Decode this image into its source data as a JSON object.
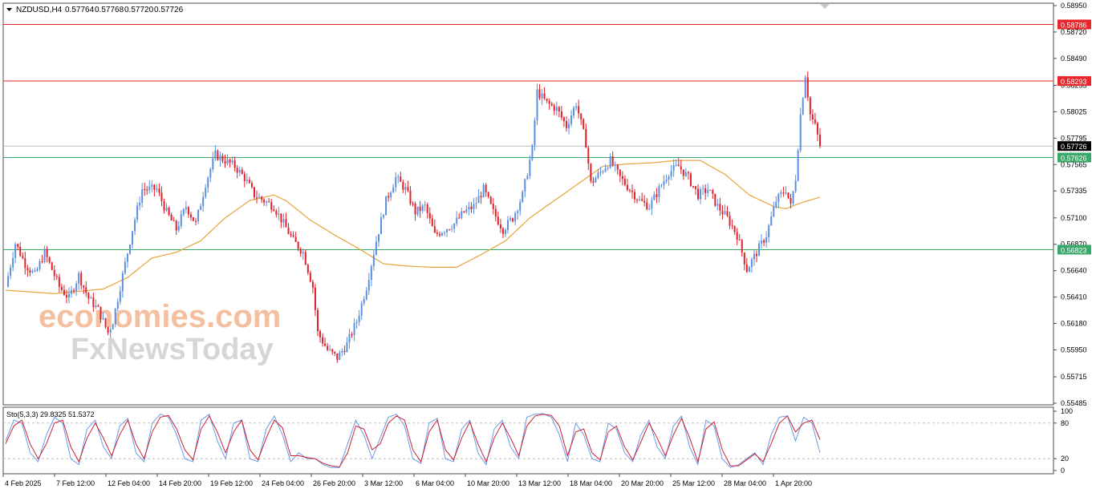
{
  "header": {
    "symbol": "NZDUSD,H4",
    "open": "0.57764",
    "high": "0.57768",
    "low": "0.57720",
    "close": "0.57726"
  },
  "chart_data": [
    {
      "type": "candlestick",
      "title": "NZDUSD,H4",
      "ylim": [
        0.55485,
        0.5895
      ],
      "y_ticks": [
        "0.58950",
        "0.58720",
        "0.58490",
        "0.58255",
        "0.58025",
        "0.57795",
        "0.57565",
        "0.57335",
        "0.57100",
        "0.56870",
        "0.56640",
        "0.56410",
        "0.56180",
        "0.55950",
        "0.55715",
        "0.55485"
      ],
      "x_ticks": [
        "4 Feb 2025",
        "7 Feb 12:00",
        "12 Feb 04:00",
        "14 Feb 20:00",
        "19 Feb 12:00",
        "24 Feb 04:00",
        "26 Feb 20:00",
        "3 Mar 12:00",
        "6 Mar 04:00",
        "10 Mar 20:00",
        "13 Mar 12:00",
        "18 Mar 04:00",
        "20 Mar 20:00",
        "25 Mar 12:00",
        "28 Mar 04:00",
        "1 Apr 20:00"
      ],
      "horizontal_lines": [
        {
          "label": "0.58786",
          "value": 0.58786,
          "color": "#e8262b"
        },
        {
          "label": "0.58293",
          "value": 0.58293,
          "color": "#e8262b"
        },
        {
          "label": "0.57626",
          "value": 0.57626,
          "color": "#3aa86b"
        },
        {
          "label": "0.56823",
          "value": 0.56823,
          "color": "#3aa86b"
        }
      ],
      "current_price": {
        "label": "0.57726",
        "value": 0.57726
      },
      "close_path": [
        [
          0,
          0.565
        ],
        [
          4,
          0.5688
        ],
        [
          8,
          0.567
        ],
        [
          12,
          0.566
        ],
        [
          16,
          0.568
        ],
        [
          22,
          0.565
        ],
        [
          26,
          0.564
        ],
        [
          30,
          0.566
        ],
        [
          34,
          0.564
        ],
        [
          38,
          0.563
        ],
        [
          42,
          0.561
        ],
        [
          44,
          0.562
        ],
        [
          48,
          0.566
        ],
        [
          52,
          0.57
        ],
        [
          56,
          0.5735
        ],
        [
          62,
          0.5735
        ],
        [
          66,
          0.5715
        ],
        [
          70,
          0.57
        ],
        [
          74,
          0.572
        ],
        [
          78,
          0.5705
        ],
        [
          82,
          0.574
        ],
        [
          86,
          0.5765
        ],
        [
          90,
          0.576
        ],
        [
          94,
          0.5755
        ],
        [
          98,
          0.5745
        ],
        [
          102,
          0.573
        ],
        [
          106,
          0.5725
        ],
        [
          110,
          0.572
        ],
        [
          114,
          0.5705
        ],
        [
          118,
          0.569
        ],
        [
          122,
          0.568
        ],
        [
          126,
          0.565
        ],
        [
          128,
          0.561
        ],
        [
          132,
          0.5595
        ],
        [
          136,
          0.5588
        ],
        [
          140,
          0.56
        ],
        [
          144,
          0.562
        ],
        [
          148,
          0.565
        ],
        [
          152,
          0.569
        ],
        [
          156,
          0.5725
        ],
        [
          160,
          0.5745
        ],
        [
          164,
          0.5735
        ],
        [
          168,
          0.5715
        ],
        [
          172,
          0.572
        ],
        [
          176,
          0.5695
        ],
        [
          180,
          0.57
        ],
        [
          184,
          0.5705
        ],
        [
          188,
          0.5715
        ],
        [
          192,
          0.572
        ],
        [
          196,
          0.5735
        ],
        [
          200,
          0.5715
        ],
        [
          204,
          0.57
        ],
        [
          208,
          0.571
        ],
        [
          212,
          0.573
        ],
        [
          216,
          0.577
        ],
        [
          218,
          0.582
        ],
        [
          222,
          0.581
        ],
        [
          226,
          0.5805
        ],
        [
          230,
          0.579
        ],
        [
          234,
          0.581
        ],
        [
          238,
          0.5775
        ],
        [
          240,
          0.574
        ],
        [
          244,
          0.575
        ],
        [
          248,
          0.576
        ],
        [
          252,
          0.5745
        ],
        [
          256,
          0.5735
        ],
        [
          260,
          0.5725
        ],
        [
          264,
          0.572
        ],
        [
          268,
          0.5735
        ],
        [
          272,
          0.575
        ],
        [
          276,
          0.5755
        ],
        [
          280,
          0.5745
        ],
        [
          284,
          0.573
        ],
        [
          288,
          0.5735
        ],
        [
          292,
          0.572
        ],
        [
          296,
          0.571
        ],
        [
          300,
          0.5695
        ],
        [
          304,
          0.5665
        ],
        [
          308,
          0.568
        ],
        [
          312,
          0.5695
        ],
        [
          316,
          0.5725
        ],
        [
          320,
          0.5735
        ],
        [
          322,
          0.572
        ],
        [
          324,
          0.5745
        ],
        [
          326,
          0.58
        ],
        [
          328,
          0.5835
        ],
        [
          330,
          0.58
        ],
        [
          332,
          0.579
        ],
        [
          334,
          0.5773
        ]
      ],
      "ma_path": [
        [
          0,
          0.5647
        ],
        [
          20,
          0.5644
        ],
        [
          40,
          0.5648
        ],
        [
          50,
          0.5658
        ],
        [
          60,
          0.5675
        ],
        [
          70,
          0.568
        ],
        [
          80,
          0.569
        ],
        [
          90,
          0.571
        ],
        [
          100,
          0.5725
        ],
        [
          110,
          0.573
        ],
        [
          115,
          0.5725
        ],
        [
          125,
          0.5708
        ],
        [
          135,
          0.5695
        ],
        [
          145,
          0.5683
        ],
        [
          155,
          0.567
        ],
        [
          165,
          0.5668
        ],
        [
          175,
          0.5667
        ],
        [
          185,
          0.5667
        ],
        [
          195,
          0.5678
        ],
        [
          205,
          0.569
        ],
        [
          215,
          0.571
        ],
        [
          225,
          0.5725
        ],
        [
          235,
          0.574
        ],
        [
          245,
          0.5755
        ],
        [
          255,
          0.5757
        ],
        [
          265,
          0.5758
        ],
        [
          275,
          0.576
        ],
        [
          285,
          0.576
        ],
        [
          295,
          0.5748
        ],
        [
          305,
          0.573
        ],
        [
          315,
          0.572
        ],
        [
          320,
          0.5718
        ],
        [
          326,
          0.5723
        ],
        [
          334,
          0.5728
        ]
      ]
    },
    {
      "type": "line",
      "title": "Sto(5,3,3) 29.8325 51.5372",
      "ylim": [
        0,
        100
      ],
      "y_ticks": [
        "100",
        "80",
        "20",
        "0"
      ],
      "levels": [
        80,
        20
      ],
      "series": [
        {
          "color": "#6a9be8",
          "values": [
            50,
            85,
            80,
            30,
            15,
            60,
            90,
            80,
            20,
            10,
            70,
            85,
            40,
            20,
            75,
            88,
            30,
            15,
            80,
            95,
            90,
            60,
            20,
            15,
            85,
            95,
            50,
            20,
            80,
            85,
            20,
            15,
            70,
            92,
            60,
            15,
            30,
            20,
            20,
            10,
            5,
            5,
            45,
            85,
            60,
            20,
            55,
            90,
            95,
            75,
            20,
            12,
            80,
            88,
            20,
            15,
            70,
            85,
            30,
            10,
            70,
            85,
            40,
            20,
            90,
            95,
            96,
            90,
            60,
            15,
            80,
            60,
            20,
            15,
            80,
            70,
            30,
            15,
            60,
            85,
            40,
            20,
            75,
            92,
            40,
            10,
            85,
            75,
            20,
            5,
            10,
            20,
            30,
            10,
            60,
            90,
            92,
            50,
            90,
            80,
            30
          ]
        },
        {
          "color": "#cc2233",
          "values": [
            45,
            75,
            85,
            45,
            20,
            45,
            80,
            85,
            40,
            15,
            55,
            80,
            55,
            25,
            60,
            85,
            45,
            20,
            65,
            90,
            93,
            70,
            35,
            18,
            70,
            92,
            65,
            30,
            65,
            85,
            35,
            18,
            55,
            85,
            72,
            25,
            25,
            22,
            20,
            12,
            8,
            6,
            30,
            75,
            70,
            35,
            45,
            80,
            92,
            85,
            35,
            15,
            65,
            85,
            35,
            18,
            55,
            82,
            45,
            15,
            55,
            80,
            55,
            25,
            75,
            92,
            95,
            93,
            75,
            25,
            65,
            70,
            30,
            18,
            65,
            75,
            40,
            18,
            48,
            80,
            55,
            25,
            60,
            88,
            55,
            15,
            70,
            82,
            35,
            8,
            8,
            18,
            28,
            15,
            45,
            80,
            92,
            65,
            80,
            85,
            52
          ]
        }
      ]
    }
  ],
  "watermark": {
    "line1": "economies.com",
    "line2": "FxNewsToday"
  }
}
